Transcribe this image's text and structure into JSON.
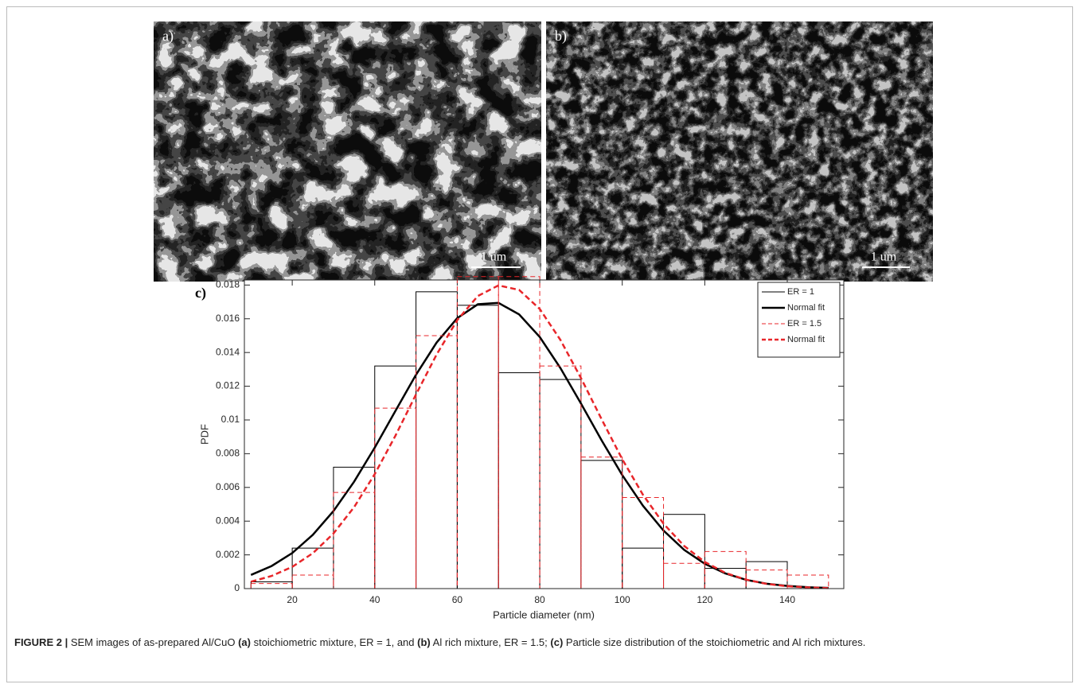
{
  "panels": [
    {
      "label": "a)",
      "scale": "1 um"
    },
    {
      "label": "b)",
      "scale": "1 um"
    }
  ],
  "chart_data": {
    "type": "histogram",
    "panel_label": "c)",
    "x_label": "Particle diameter (nm)",
    "y_label": "PDF",
    "xlim": [
      8.4,
      153.7
    ],
    "ylim": [
      0,
      0.0183
    ],
    "xticks": [
      20,
      40,
      60,
      80,
      100,
      120,
      140
    ],
    "yticks": [
      0,
      0.002,
      0.004,
      0.006,
      0.008,
      0.01,
      0.012,
      0.014,
      0.016,
      0.018
    ],
    "legend": "top-right",
    "series": [
      {
        "name": "ER = 1",
        "kind": "bars",
        "color": "#000000",
        "dashed": false,
        "bins": [
          10,
          20,
          30,
          40,
          50,
          60,
          70,
          80,
          90,
          100,
          110,
          120,
          130,
          140
        ],
        "values": [
          0.0004,
          0.0024,
          0.0072,
          0.0132,
          0.0176,
          0.0168,
          0.0128,
          0.0124,
          0.0076,
          0.0024,
          0.0044,
          0.0012,
          0.0016
        ]
      },
      {
        "name": "Normal fit",
        "kind": "line",
        "color": "#000000",
        "dashed": false,
        "x": [
          10,
          15,
          20,
          25,
          30,
          35,
          40,
          45,
          50,
          55,
          60,
          65,
          70,
          75,
          80,
          85,
          90,
          95,
          100,
          105,
          110,
          115,
          120,
          125,
          130,
          135,
          140,
          145,
          150
        ],
        "values": [
          0.00081,
          0.00134,
          0.00211,
          0.00319,
          0.0046,
          0.00634,
          0.00836,
          0.01053,
          0.01268,
          0.01459,
          0.01604,
          0.01686,
          0.01694,
          0.01626,
          0.01492,
          0.01308,
          0.01097,
          0.00879,
          0.00673,
          0.00492,
          0.00344,
          0.0023,
          0.00147,
          0.0009,
          0.00052,
          0.00029,
          0.00016,
          8e-05,
          4e-05
        ]
      },
      {
        "name": "ER = 1.5",
        "kind": "bars",
        "color": "#e8262a",
        "dashed": true,
        "bins": [
          10,
          20,
          30,
          40,
          50,
          60,
          70,
          80,
          90,
          100,
          110,
          120,
          130,
          140,
          150
        ],
        "values": [
          0.0003,
          0.0008,
          0.0057,
          0.0107,
          0.015,
          0.0185,
          0.0185,
          0.0132,
          0.0078,
          0.0054,
          0.0015,
          0.0022,
          0.0011,
          0.0008
        ]
      },
      {
        "name": "Normal fit",
        "kind": "line",
        "color": "#e8262a",
        "dashed": true,
        "x": [
          10,
          15,
          20,
          25,
          30,
          35,
          40,
          45,
          50,
          55,
          60,
          65,
          70,
          75,
          80,
          85,
          90,
          95,
          100,
          105,
          110,
          115,
          120,
          125,
          130,
          135,
          140,
          145,
          150
        ],
        "values": [
          0.00041,
          0.00075,
          0.00129,
          0.0021,
          0.00327,
          0.00483,
          0.00679,
          0.00906,
          0.01151,
          0.01388,
          0.01592,
          0.01735,
          0.01798,
          0.01771,
          0.01658,
          0.01475,
          0.01248,
          0.01004,
          0.00767,
          0.00557,
          0.00385,
          0.00253,
          0.00158,
          0.00093,
          0.00053,
          0.00028,
          0.00014,
          7e-05,
          3e-05
        ]
      }
    ]
  },
  "caption": {
    "runs": [
      {
        "text": "FIGURE 2 |",
        "bold": true
      },
      {
        "text": " SEM images of as-prepared Al/CuO ",
        "bold": false
      },
      {
        "text": "(a)",
        "bold": true
      },
      {
        "text": " stoichiometric mixture, ER = 1, and ",
        "bold": false
      },
      {
        "text": "(b)",
        "bold": true
      },
      {
        "text": " Al rich mixture, ER = 1.5; ",
        "bold": false
      },
      {
        "text": "(c)",
        "bold": true
      },
      {
        "text": " Particle size distribution of the stoichiometric and Al rich mixtures.",
        "bold": false
      }
    ]
  }
}
